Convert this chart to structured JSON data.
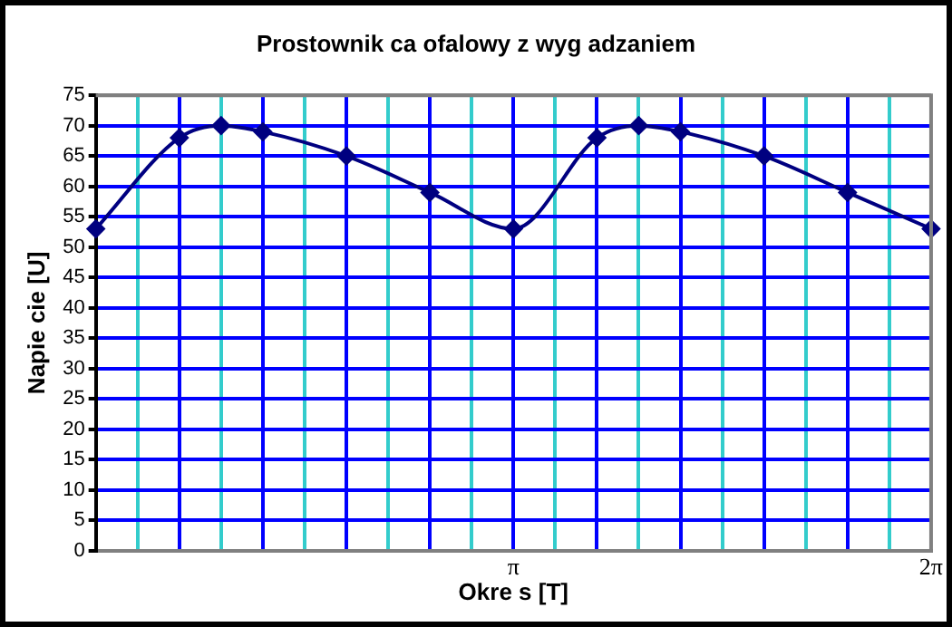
{
  "chart_data": {
    "type": "line",
    "title": "Prostownik ca ofalowy z wyg adzaniem",
    "xlabel": "Okre s [T]",
    "ylabel": "Napie cie [U]",
    "x": [
      0,
      0.6283,
      0.9425,
      1.2566,
      1.885,
      2.5133,
      3.1416,
      3.7699,
      4.0841,
      4.3982,
      5.0265,
      5.6549,
      6.2832
    ],
    "series": [
      {
        "color": "#000080",
        "values": [
          53,
          68,
          70,
          69,
          65,
          59,
          53,
          68,
          70,
          69,
          65,
          59,
          53
        ]
      }
    ],
    "xlim": [
      0,
      6.2832
    ],
    "xticks": [
      {
        "value": 0,
        "label": null
      },
      {
        "value": 0.3142,
        "label": null
      },
      {
        "value": 0.6283,
        "label": null
      },
      {
        "value": 0.9425,
        "label": null
      },
      {
        "value": 1.2566,
        "label": null
      },
      {
        "value": 1.5708,
        "label": null
      },
      {
        "value": 1.885,
        "label": null
      },
      {
        "value": 2.1991,
        "label": null
      },
      {
        "value": 2.5133,
        "label": null
      },
      {
        "value": 2.8274,
        "label": null
      },
      {
        "value": 3.1416,
        "label": "π"
      },
      {
        "value": 3.4558,
        "label": null
      },
      {
        "value": 3.7699,
        "label": null
      },
      {
        "value": 4.0841,
        "label": null
      },
      {
        "value": 4.3982,
        "label": null
      },
      {
        "value": 4.7124,
        "label": null
      },
      {
        "value": 5.0265,
        "label": null
      },
      {
        "value": 5.3407,
        "label": null
      },
      {
        "value": 5.6549,
        "label": null
      },
      {
        "value": 5.969,
        "label": null
      },
      {
        "value": 6.2832,
        "label": "2π"
      }
    ],
    "ylim": [
      0,
      75
    ],
    "yticks": [
      0,
      5,
      10,
      15,
      20,
      25,
      30,
      35,
      40,
      45,
      50,
      55,
      60,
      65,
      70,
      75
    ],
    "grid": true,
    "legend": false,
    "marker": "diamond",
    "line_style": "solid"
  }
}
